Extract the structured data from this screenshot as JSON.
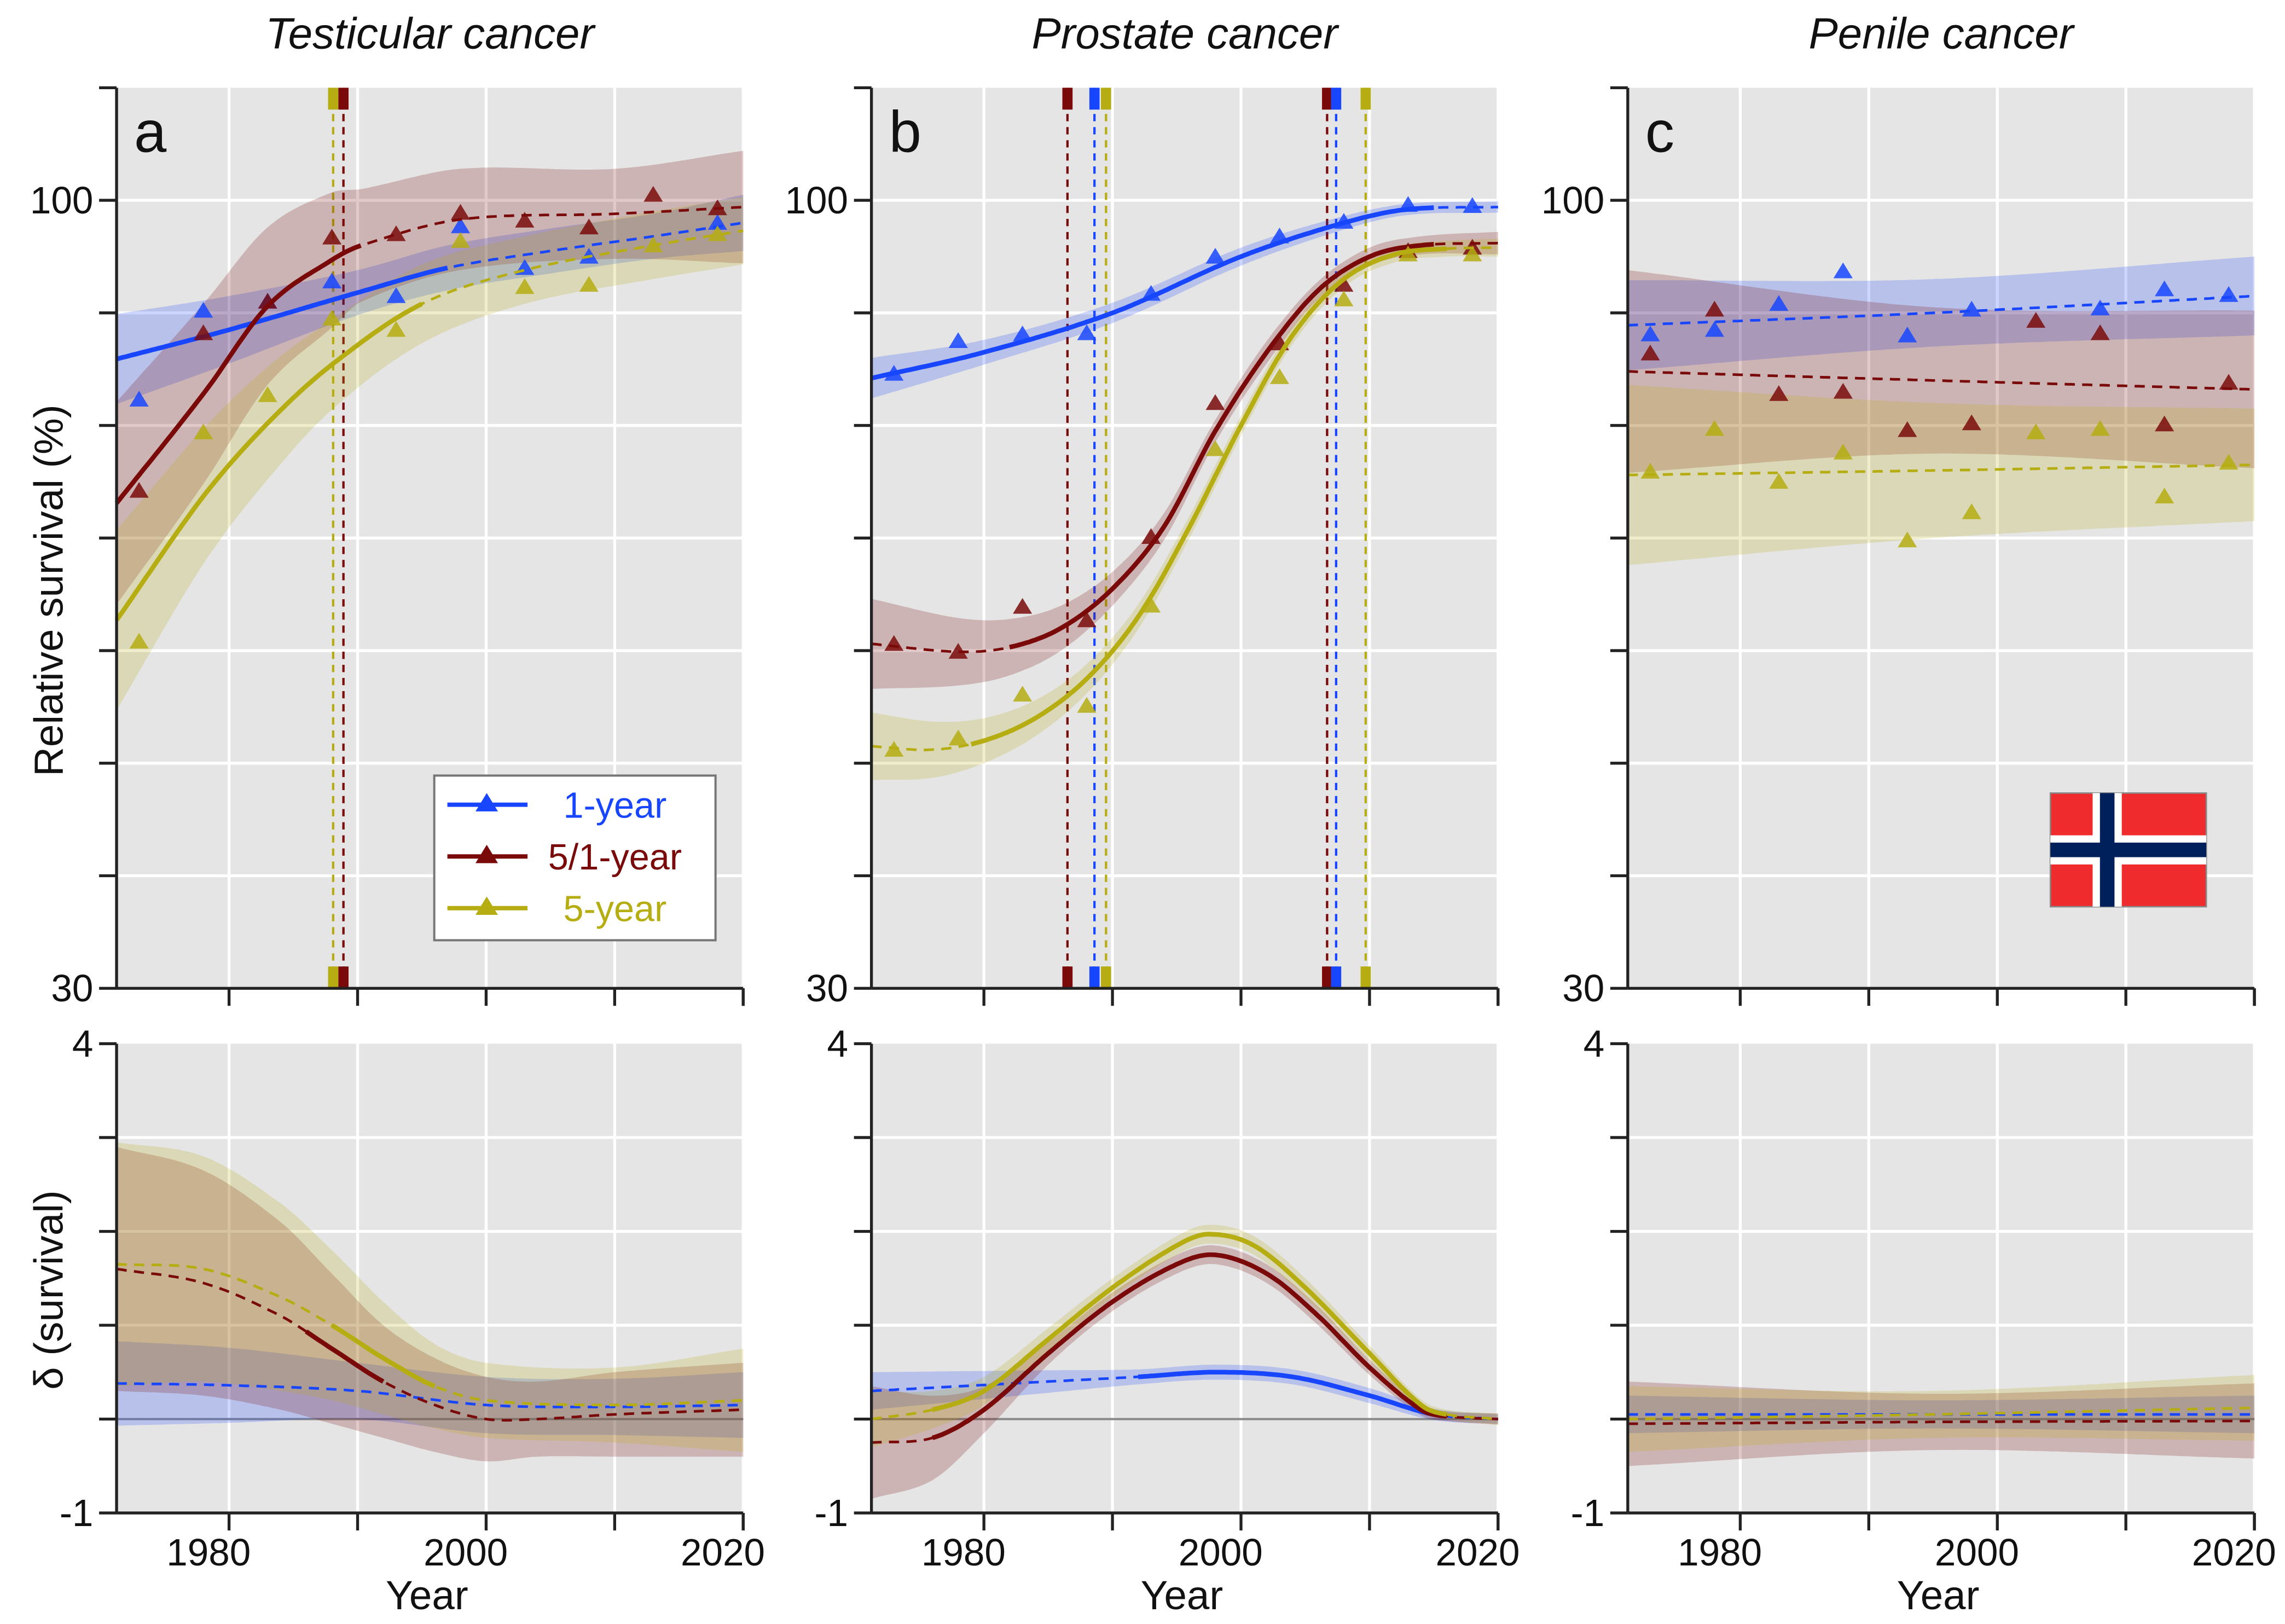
{
  "chart_data": {
    "type": "line",
    "y_label_top": "Relative survival (%)",
    "y_label_bottom": "δ (survival)",
    "x_label": "Year",
    "xlim": [
      1971.25,
      2020
    ],
    "ylim_top": [
      30,
      110
    ],
    "ylim_bottom": [
      -1,
      4
    ],
    "x_ticks": [
      1980,
      1990,
      2000,
      2010,
      2020
    ],
    "x_tick_labels": [
      "1980",
      "2000",
      "2020"
    ],
    "y_tick_labels_top": [
      "100",
      "30"
    ],
    "y_tick_labels_bottom": [
      "4",
      "-1"
    ],
    "grid": true,
    "legend": {
      "placement": "bottom-right of panel a",
      "entries": [
        {
          "label": "1-year",
          "color": "#1846ff"
        },
        {
          "label": "5/1-year",
          "color": "#7a0a0a"
        },
        {
          "label": "5-year",
          "color": "#b5ad12"
        }
      ]
    },
    "flag": "Norway",
    "marker_years": [
      1973,
      1978,
      1983,
      1988,
      1993,
      1998,
      2003,
      2008,
      2013,
      2018
    ],
    "panels": [
      {
        "letter": "a",
        "title": "Testicular cancer",
        "change_points": [
          {
            "series": 2,
            "year": 1988.1
          },
          {
            "series": 1,
            "year": 1988.9
          }
        ],
        "survival": [
          {
            "markers": [
              82.3,
              90.2,
              91,
              92.8,
              91.5,
              97.7,
              94,
              95,
              null,
              98
            ],
            "curve": {
              "x": [
                1971.25,
                1980,
                1990,
                1997,
                2005,
                2013,
                2020
              ],
              "y": [
                85.9,
                88.5,
                91.8,
                94,
                95.5,
                96.8,
                98
              ],
              "ci": [
                4,
                3,
                2,
                2,
                2,
                2,
                2.5
              ]
            },
            "solid": [
              1971.25,
              1997
            ]
          },
          {
            "markers": [
              74.2,
              88.2,
              91,
              96.7,
              97,
              98.9,
              98.2,
              97.6,
              100.5,
              99.3
            ],
            "curve": {
              "x": [
                1971.25,
                1978,
                1983,
                1988,
                1990.3,
                1998,
                2010,
                2020
              ],
              "y": [
                73.1,
                82.8,
                90.6,
                94.7,
                96,
                98.3,
                98.8,
                99.4
              ],
              "ci": [
                9,
                8,
                7,
                6,
                5,
                4.5,
                4,
                5
              ]
            },
            "solid": [
              1971.25,
              1990.3
            ]
          },
          {
            "markers": [
              60.8,
              79.4,
              82.7,
              89.5,
              88.5,
              96.4,
              92.3,
              92.5,
              96,
              97
            ],
            "curve": {
              "x": [
                1971.25,
                1978,
                1983,
                1988,
                1995,
                2003,
                2013,
                2020
              ],
              "y": [
                62.7,
                73.7,
                80.2,
                85.4,
                90.8,
                93.8,
                96,
                97.3
              ],
              "ci": [
                8,
                6,
                5,
                4,
                3.5,
                3,
                3,
                3
              ]
            },
            "solid": [
              1971.25,
              1995
            ]
          }
        ],
        "delta": [
          {
            "curve": {
              "x": [
                1971.25,
                1980,
                1990,
                2000,
                2010,
                2020
              ],
              "y": [
                0.38,
                0.36,
                0.3,
                0.15,
                0.13,
                0.15
              ],
              "ci": [
                0.45,
                0.4,
                0.3,
                0.3,
                0.3,
                0.35
              ]
            },
            "solid": null
          },
          {
            "curve": {
              "x": [
                1971.25,
                1978,
                1984,
                1988,
                1992,
                1996,
                2000,
                2004,
                2010,
                2020
              ],
              "y": [
                1.6,
                1.45,
                1.1,
                0.75,
                0.4,
                0.15,
                0.0,
                0.0,
                0.05,
                0.1
              ],
              "ci": [
                1.3,
                1.2,
                1.0,
                0.8,
                0.6,
                0.5,
                0.45,
                0.4,
                0.45,
                0.5
              ]
            },
            "solid": [
              1986,
              1992
            ]
          },
          {
            "curve": {
              "x": [
                1971.25,
                1978,
                1984,
                1988,
                1992,
                1996,
                2000,
                2010,
                2020
              ],
              "y": [
                1.65,
                1.6,
                1.3,
                1.0,
                0.65,
                0.35,
                0.2,
                0.15,
                0.2
              ],
              "ci": [
                1.3,
                1.2,
                1.0,
                0.8,
                0.6,
                0.45,
                0.4,
                0.4,
                0.55
              ]
            },
            "solid": [
              1988,
              1996
            ]
          }
        ]
      },
      {
        "letter": "b",
        "title": "Prostate cancer",
        "change_points": [
          {
            "series": 1,
            "year": 1986.5
          },
          {
            "series": 0,
            "year": 1988.6
          },
          {
            "series": 2,
            "year": 1989.5
          },
          {
            "series": 1,
            "year": 2006.7
          },
          {
            "series": 0,
            "year": 2007.4
          },
          {
            "series": 2,
            "year": 2009.7
          }
        ],
        "survival": [
          {
            "markers": [
              84.6,
              87.5,
              88.1,
              88.2,
              91.7,
              95,
              96.8,
              98.1,
              99.6,
              99.5
            ],
            "curve": {
              "x": [
                1971.25,
                1980,
                1990,
                2000,
                2008,
                2013,
                2020
              ],
              "y": [
                84.2,
                86.5,
                90,
                95,
                98,
                99.2,
                99.4
              ],
              "ci": [
                1.8,
                1.1,
                0.9,
                0.8,
                0.6,
                0.5,
                0.5
              ]
            },
            "solid": [
              1971.25,
              2015
            ]
          },
          {
            "markers": [
              60.6,
              59.9,
              63.9,
              62.7,
              70.1,
              82,
              87.3,
              92.5,
              95.5,
              95.8
            ],
            "curve": {
              "x": [
                1971.25,
                1978,
                1982,
                1986,
                1990,
                1994,
                1998,
                2002,
                2006,
                2010,
                2014,
                2020
              ],
              "y": [
                60.6,
                59.9,
                60.3,
                62,
                65.5,
                71,
                79.5,
                86.5,
                92,
                95,
                96,
                96.2
              ],
              "ci": [
                4,
                3,
                2.5,
                2,
                1.5,
                1.2,
                1,
                1,
                0.8,
                0.8,
                0.8,
                1
              ]
            },
            "solid": [
              1982,
              2015
            ]
          },
          {
            "markers": [
              51.2,
              52.2,
              56.1,
              55.1,
              64,
              77.9,
              84.3,
              91.2,
              95.2,
              95.2
            ],
            "curve": {
              "x": [
                1971.25,
                1976,
                1980,
                1984,
                1988,
                1992,
                1996,
                2000,
                2004,
                2008,
                2012,
                2016,
                2020
              ],
              "y": [
                51.5,
                51.2,
                52,
                54,
                57.5,
                63,
                71,
                80,
                88,
                93,
                95.2,
                95.7,
                95.8
              ],
              "ci": [
                3,
                2.5,
                2,
                1.6,
                1.3,
                1.1,
                1,
                0.9,
                0.8,
                0.7,
                0.7,
                0.7,
                0.8
              ]
            },
            "solid": [
              1979,
              2016
            ]
          }
        ],
        "delta": [
          {
            "curve": {
              "x": [
                1971.25,
                1985,
                1992,
                1998,
                2004,
                2010,
                2015,
                2020
              ],
              "y": [
                0.3,
                0.4,
                0.45,
                0.5,
                0.45,
                0.25,
                0.05,
                0.0
              ],
              "ci": [
                0.2,
                0.12,
                0.08,
                0.08,
                0.08,
                0.08,
                0.06,
                0.05
              ]
            },
            "solid": [
              1992,
              2015
            ]
          },
          {
            "curve": {
              "x": [
                1971.25,
                1976,
                1980,
                1985,
                1990,
                1995,
                1998,
                2002,
                2006,
                2010,
                2014,
                2016,
                2020
              ],
              "y": [
                -0.25,
                -0.2,
                0.1,
                0.7,
                1.25,
                1.65,
                1.75,
                1.55,
                1.1,
                0.55,
                0.1,
                0.03,
                0.0
              ],
              "ci": [
                0.6,
                0.45,
                0.25,
                0.12,
                0.1,
                0.1,
                0.1,
                0.1,
                0.1,
                0.08,
                0.06,
                0.05,
                0.06
              ]
            },
            "solid": [
              1976,
              2016
            ]
          },
          {
            "curve": {
              "x": [
                1971.25,
                1976,
                1980,
                1985,
                1990,
                1995,
                1997.5,
                2001,
                2005,
                2010,
                2014,
                2016,
                2020
              ],
              "y": [
                0.0,
                0.1,
                0.3,
                0.85,
                1.4,
                1.85,
                1.97,
                1.85,
                1.4,
                0.7,
                0.15,
                0.05,
                0.0
              ],
              "ci": [
                0.3,
                0.2,
                0.15,
                0.12,
                0.1,
                0.1,
                0.1,
                0.1,
                0.1,
                0.08,
                0.06,
                0.05,
                0.06
              ]
            },
            "solid": [
              1976,
              2016
            ]
          }
        ]
      },
      {
        "letter": "c",
        "title": "Penile cancer",
        "change_points": [],
        "survival": [
          {
            "markers": [
              88.1,
              88.5,
              90.8,
              93.7,
              88,
              90.3,
              null,
              90.4,
              92.1,
              91.6
            ],
            "curve": {
              "x": [
                1971.25,
                1995,
                2020
              ],
              "y": [
                88.9,
                90,
                91.5
              ],
              "ci": [
                4,
                3,
                3.5
              ]
            },
            "solid": null
          },
          {
            "markers": [
              86.4,
              90.3,
              82.8,
              83,
              79.6,
              80.2,
              89.3,
              88.2,
              80.1,
              83.8
            ],
            "curve": {
              "x": [
                1971.25,
                1995,
                2020
              ],
              "y": [
                84.8,
                84,
                83.2
              ],
              "ci": [
                9,
                6.5,
                7
              ]
            },
            "solid": null
          },
          {
            "markers": [
              75.9,
              79.7,
              75,
              77.6,
              69.8,
              72.3,
              79.4,
              79.7,
              73.7,
              76.7
            ],
            "curve": {
              "x": [
                1971.25,
                1995,
                2020
              ],
              "y": [
                75.6,
                76,
                76.5
              ],
              "ci": [
                8,
                6,
                5
              ]
            },
            "solid": null
          }
        ],
        "delta": [
          {
            "curve": {
              "x": [
                1971.25,
                1995,
                2020
              ],
              "y": [
                0.05,
                0.05,
                0.05
              ],
              "ci": [
                0.2,
                0.15,
                0.2
              ]
            },
            "solid": null
          },
          {
            "curve": {
              "x": [
                1971.25,
                1995,
                2020
              ],
              "y": [
                -0.05,
                -0.03,
                -0.02
              ],
              "ci": [
                0.45,
                0.3,
                0.4
              ]
            },
            "solid": null
          },
          {
            "curve": {
              "x": [
                1971.25,
                1995,
                2020
              ],
              "y": [
                0.0,
                0.05,
                0.12
              ],
              "ci": [
                0.35,
                0.25,
                0.35
              ]
            },
            "solid": null
          }
        ]
      }
    ]
  }
}
